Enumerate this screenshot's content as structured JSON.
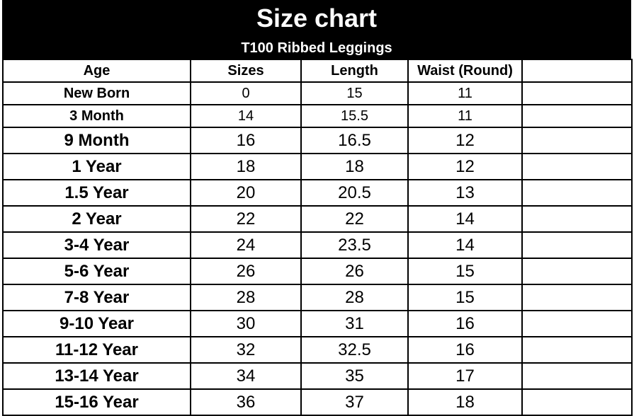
{
  "title": "Size chart",
  "subtitle": "T100 Ribbed Leggings",
  "columns": [
    "Age",
    "Sizes",
    "Length",
    "Waist (Round)",
    ""
  ],
  "rows": [
    {
      "age": "New Born",
      "size": "0",
      "length": "15",
      "waist": "11"
    },
    {
      "age": "3 Month",
      "size": "14",
      "length": "15.5",
      "waist": "11"
    },
    {
      "age": "9 Month",
      "size": "16",
      "length": "16.5",
      "waist": "12"
    },
    {
      "age": "1 Year",
      "size": "18",
      "length": "18",
      "waist": "12"
    },
    {
      "age": "1.5 Year",
      "size": "20",
      "length": "20.5",
      "waist": "13"
    },
    {
      "age": "2 Year",
      "size": "22",
      "length": "22",
      "waist": "14"
    },
    {
      "age": "3-4 Year",
      "size": "24",
      "length": "23.5",
      "waist": "14"
    },
    {
      "age": "5-6 Year",
      "size": "26",
      "length": "26",
      "waist": "15"
    },
    {
      "age": "7-8 Year",
      "size": "28",
      "length": "28",
      "waist": "15"
    },
    {
      "age": "9-10 Year",
      "size": "30",
      "length": "31",
      "waist": "16"
    },
    {
      "age": "11-12 Year",
      "size": "32",
      "length": "32.5",
      "waist": "16"
    },
    {
      "age": "13-14 Year",
      "size": "34",
      "length": "35",
      "waist": "17"
    },
    {
      "age": "15-16 Year",
      "size": "36",
      "length": "37",
      "waist": "18"
    }
  ]
}
